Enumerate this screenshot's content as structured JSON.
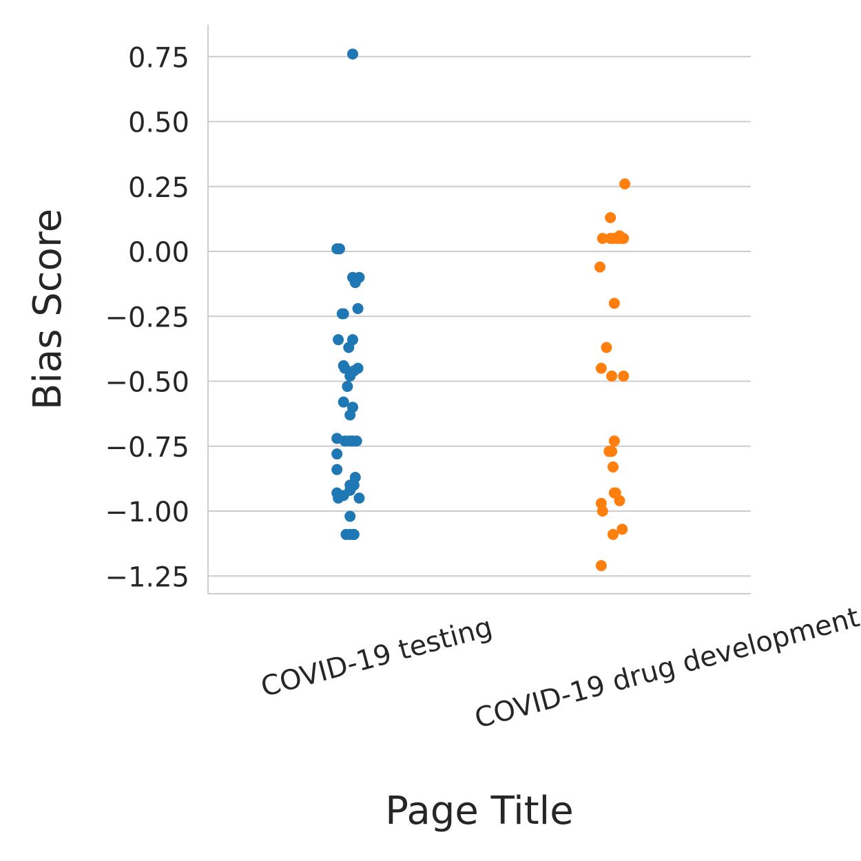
{
  "chart_data": {
    "type": "scatter",
    "xlabel": "Page Title",
    "ylabel": "Bias Score",
    "ylim": [
      -1.32,
      0.87
    ],
    "yticks": [
      0.75,
      0.5,
      0.25,
      0.0,
      -0.25,
      -0.5,
      -0.75,
      -1.0,
      -1.25
    ],
    "ytick_labels": [
      "0.75",
      "0.50",
      "0.25",
      "0.00",
      "−0.25",
      "−0.50",
      "−0.75",
      "−1.00",
      "−1.25"
    ],
    "grid": true,
    "categories": [
      "COVID-19 testing",
      "COVID-19 drug development"
    ],
    "series": [
      {
        "category": "COVID-19 testing",
        "color": "#1f77b4",
        "values": [
          0.76,
          0.01,
          0.01,
          -0.1,
          -0.1,
          -0.12,
          -0.22,
          -0.24,
          -0.24,
          -0.34,
          -0.34,
          -0.37,
          -0.44,
          -0.45,
          -0.45,
          -0.46,
          -0.48,
          -0.52,
          -0.58,
          -0.6,
          -0.63,
          -0.72,
          -0.73,
          -0.73,
          -0.73,
          -0.73,
          -0.73,
          -0.78,
          -0.84,
          -0.87,
          -0.9,
          -0.9,
          -0.92,
          -0.93,
          -0.94,
          -0.95,
          -0.95,
          -1.02,
          -1.09,
          -1.09,
          -1.09,
          -1.09
        ],
        "jitter": [
          0.0,
          -0.12,
          -0.1,
          0.0,
          0.05,
          0.02,
          0.04,
          -0.08,
          -0.07,
          -0.11,
          0.0,
          -0.03,
          -0.07,
          -0.06,
          0.04,
          0.01,
          -0.02,
          -0.04,
          -0.07,
          0.0,
          -0.02,
          -0.12,
          -0.06,
          -0.03,
          -0.01,
          0.0,
          0.03,
          -0.12,
          -0.12,
          0.02,
          -0.02,
          0.01,
          -0.02,
          -0.12,
          -0.07,
          0.05,
          -0.11,
          -0.02,
          -0.05,
          -0.02,
          0.0,
          0.01
        ]
      },
      {
        "category": "COVID-19 drug development",
        "color": "#ff7f0e",
        "values": [
          0.26,
          0.13,
          0.05,
          0.05,
          0.05,
          0.05,
          0.06,
          0.05,
          0.05,
          -0.06,
          -0.2,
          -0.37,
          -0.45,
          -0.48,
          -0.48,
          -0.73,
          -0.77,
          -0.77,
          -0.83,
          -0.93,
          -0.93,
          -0.96,
          -0.97,
          -1.0,
          -1.07,
          -1.09,
          -1.21
        ],
        "jitter": [
          0.09,
          -0.02,
          -0.08,
          -0.02,
          0.0,
          0.03,
          0.05,
          0.06,
          0.08,
          -0.1,
          0.01,
          -0.05,
          -0.09,
          -0.01,
          0.08,
          0.01,
          -0.03,
          -0.01,
          0.0,
          0.01,
          0.02,
          0.05,
          -0.09,
          -0.08,
          0.07,
          0.0,
          -0.09
        ]
      }
    ]
  }
}
